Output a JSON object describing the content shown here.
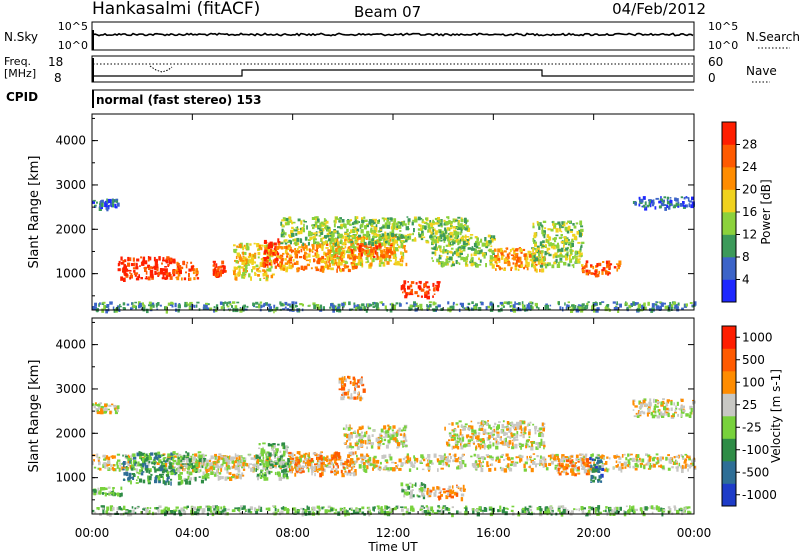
{
  "header": {
    "station": "Hankasalmi (fitACF)",
    "beam": "Beam 07",
    "date": "04/Feb/2012"
  },
  "top_panels": {
    "nsky_label": "N.Sky",
    "nsky_ticks": [
      "10^5",
      "10^0"
    ],
    "nsearch_label": "N.Search",
    "freq_label_1": "Freq.",
    "freq_label_2": "[MHz]",
    "freq_ticks": [
      "18",
      "8"
    ],
    "nave_label": "Nave",
    "nave_ticks": [
      "60",
      "0"
    ],
    "cpid_label": "CPID",
    "cpid_value": "normal (fast stereo) 153"
  },
  "chart_data": [
    {
      "type": "heatmap",
      "ylabel": "Slant Range [km]",
      "xlabel": "Time UT",
      "x_ticks": [
        "00:00",
        "04:00",
        "08:00",
        "12:00",
        "16:00",
        "20:00",
        "00:00"
      ],
      "y_ticks": [
        "1000",
        "2000",
        "3000",
        "4000"
      ],
      "ylim": [
        180,
        4600
      ],
      "colorbar_label": "Power [dB]",
      "colorbar_ticks": [
        "4",
        "8",
        "12",
        "16",
        "20",
        "24",
        "28"
      ],
      "colorbar_colors": [
        "#1e28ff",
        "#3c64c8",
        "#3c9a5a",
        "#8cd23c",
        "#f0d21e",
        "#ff8c00",
        "#ff5a00",
        "#ff1e00"
      ],
      "regions": [
        {
          "t0": 1.0,
          "t1": 3.3,
          "r0": 900,
          "r1": 1400,
          "level": 7
        },
        {
          "t0": 3.3,
          "t1": 4.2,
          "r0": 900,
          "r1": 1300,
          "level": 6
        },
        {
          "t0": 4.8,
          "t1": 5.3,
          "r0": 1000,
          "r1": 1300,
          "level": 7
        },
        {
          "t0": 5.6,
          "t1": 7.2,
          "r0": 900,
          "r1": 1700,
          "level": 4
        },
        {
          "t0": 6.8,
          "t1": 7.4,
          "r0": 1200,
          "r1": 1800,
          "level": 7
        },
        {
          "t0": 7.2,
          "t1": 10.5,
          "r0": 1100,
          "r1": 1700,
          "level": 5
        },
        {
          "t0": 9.5,
          "t1": 12.5,
          "r0": 1200,
          "r1": 1900,
          "level": 4
        },
        {
          "t0": 10.3,
          "t1": 12.0,
          "r0": 1400,
          "r1": 1700,
          "level": 6
        },
        {
          "t0": 12.3,
          "t1": 13.8,
          "r0": 500,
          "r1": 850,
          "level": 7
        },
        {
          "t0": 13.5,
          "t1": 16.0,
          "r0": 1200,
          "r1": 1900,
          "level": 3
        },
        {
          "t0": 16.0,
          "t1": 18.0,
          "r0": 1100,
          "r1": 1600,
          "level": 5
        },
        {
          "t0": 17.5,
          "t1": 19.5,
          "r0": 1200,
          "r1": 2200,
          "level": 3
        },
        {
          "t0": 19.5,
          "t1": 21.0,
          "r0": 1000,
          "r1": 1300,
          "level": 6
        },
        {
          "t0": 0.0,
          "t1": 1.0,
          "r0": 2500,
          "r1": 2700,
          "level": 1
        },
        {
          "t0": 21.5,
          "t1": 24.0,
          "r0": 2500,
          "r1": 2750,
          "level": 1
        },
        {
          "t0": 7.5,
          "t1": 15.0,
          "r0": 1700,
          "r1": 2300,
          "level": 3
        },
        {
          "t0": 0.0,
          "t1": 24.0,
          "r0": 200,
          "r1": 380,
          "level": 2
        }
      ]
    },
    {
      "type": "heatmap",
      "ylabel": "Slant Range [km]",
      "xlabel": "Time UT",
      "x_ticks": [
        "00:00",
        "04:00",
        "08:00",
        "12:00",
        "16:00",
        "20:00",
        "00:00"
      ],
      "y_ticks": [
        "1000",
        "2000",
        "3000",
        "4000"
      ],
      "ylim": [
        180,
        4600
      ],
      "colorbar_label": "Velocity [m s-1]",
      "colorbar_ticks": [
        "1000",
        "500",
        "100",
        "25",
        "-25",
        "-100",
        "-500",
        "-1000"
      ],
      "colorbar_colors": [
        "#1e3cc8",
        "#2e6e96",
        "#2e8c46",
        "#78d23c",
        "#c8c8c4",
        "#ff8c00",
        "#ff5a00",
        "#ff1e00"
      ],
      "regions": [
        {
          "t0": 0.0,
          "t1": 24.0,
          "r0": 1200,
          "r1": 1550,
          "level": 4
        },
        {
          "t0": 1.2,
          "t1": 3.3,
          "r0": 900,
          "r1": 1600,
          "level": 2
        },
        {
          "t0": 3.3,
          "t1": 4.5,
          "r0": 900,
          "r1": 1600,
          "level": 3
        },
        {
          "t0": 4.5,
          "t1": 6.0,
          "r0": 1000,
          "r1": 1500,
          "level": 4
        },
        {
          "t0": 6.5,
          "t1": 7.8,
          "r0": 1000,
          "r1": 1800,
          "level": 3
        },
        {
          "t0": 7.8,
          "t1": 10.5,
          "r0": 1100,
          "r1": 1600,
          "level": 5
        },
        {
          "t0": 10.0,
          "t1": 12.5,
          "r0": 1700,
          "r1": 2200,
          "level": 4
        },
        {
          "t0": 12.3,
          "t1": 13.3,
          "r0": 600,
          "r1": 900,
          "level": 3
        },
        {
          "t0": 13.3,
          "t1": 14.8,
          "r0": 550,
          "r1": 850,
          "level": 5
        },
        {
          "t0": 14.0,
          "t1": 18.0,
          "r0": 1700,
          "r1": 2300,
          "level": 4
        },
        {
          "t0": 18.5,
          "t1": 20.0,
          "r0": 1100,
          "r1": 1500,
          "level": 5
        },
        {
          "t0": 19.8,
          "t1": 20.3,
          "r0": 900,
          "r1": 1500,
          "level": 1
        },
        {
          "t0": 0.0,
          "t1": 1.0,
          "r0": 2500,
          "r1": 2700,
          "level": 4
        },
        {
          "t0": 21.5,
          "t1": 24.0,
          "r0": 2400,
          "r1": 2800,
          "level": 4
        },
        {
          "t0": 9.8,
          "t1": 10.8,
          "r0": 2800,
          "r1": 3300,
          "level": 5
        },
        {
          "t0": 0.0,
          "t1": 24.0,
          "r0": 200,
          "r1": 380,
          "level": 3
        },
        {
          "t0": 0.0,
          "t1": 1.2,
          "r0": 650,
          "r1": 800,
          "level": 3
        }
      ]
    }
  ]
}
